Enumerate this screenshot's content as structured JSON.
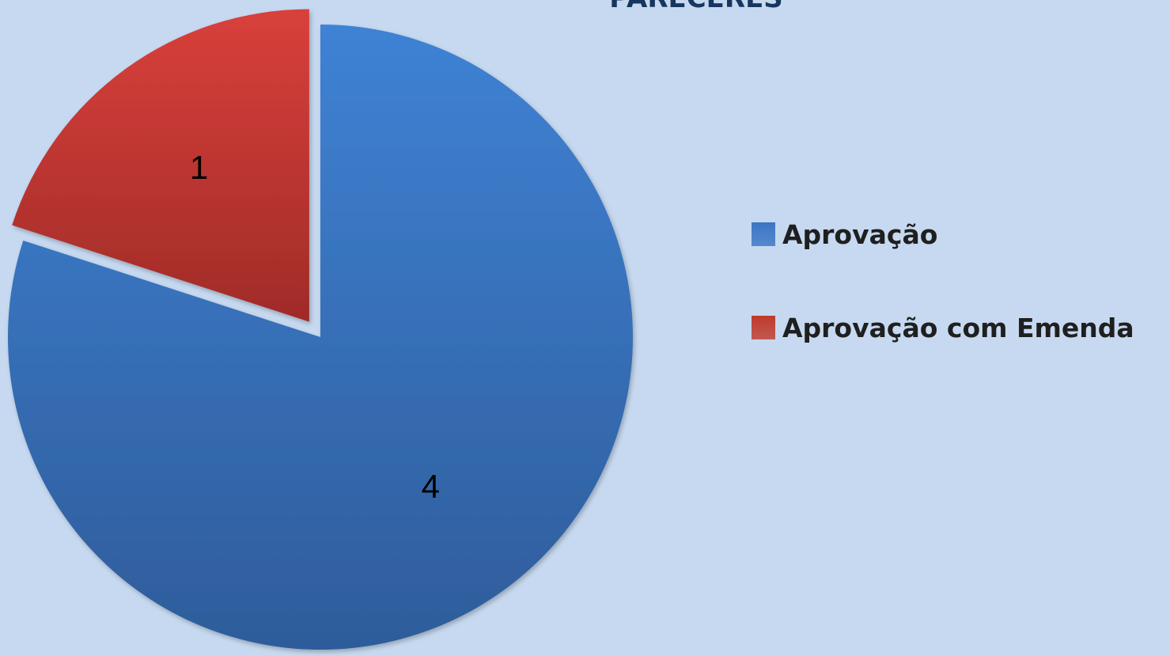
{
  "chart_data": {
    "type": "pie",
    "title": "PARECERES",
    "categories": [
      "Aprovação",
      "Aprovação com Emenda"
    ],
    "values": [
      4,
      1
    ],
    "data_labels": [
      "4",
      "1"
    ],
    "colors": [
      "#3a75c4",
      "#c0392b"
    ],
    "exploded": [
      false,
      true
    ],
    "legend_position": "right"
  }
}
